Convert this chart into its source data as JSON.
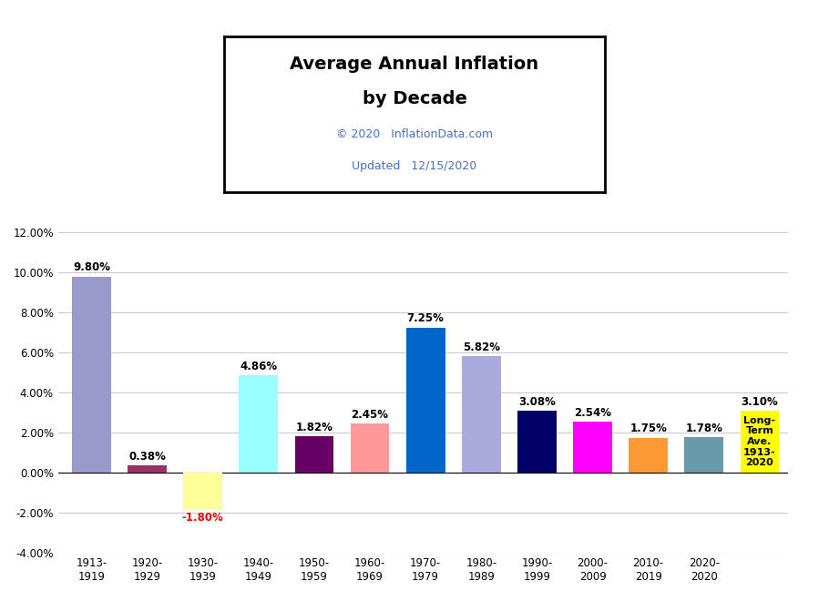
{
  "categories": [
    "1913-\n1919",
    "1920-\n1929",
    "1930-\n1939",
    "1940-\n1949",
    "1950-\n1959",
    "1960-\n1969",
    "1970-\n1979",
    "1980-\n1989",
    "1990-\n1999",
    "2000-\n2009",
    "2010-\n2019",
    "2020-\n2020"
  ],
  "values": [
    9.8,
    0.38,
    -1.8,
    4.86,
    1.82,
    2.45,
    7.25,
    5.82,
    3.08,
    2.54,
    1.75,
    1.78
  ],
  "long_term_value": 3.1,
  "bar_colors": [
    "#9999cc",
    "#993366",
    "#ffff99",
    "#99ffff",
    "#660066",
    "#ff9999",
    "#0066cc",
    "#aaaadd",
    "#000066",
    "#ff00ff",
    "#ff9933",
    "#6699aa"
  ],
  "long_term_color": "#ffff00",
  "title_line1": "Average Annual Inflation",
  "title_line2": "by Decade",
  "subtitle1": "© 2020   InflationData.com",
  "subtitle2": "Updated   12/15/2020",
  "ylim": [
    -4.0,
    12.5
  ],
  "yticks": [
    -4.0,
    -2.0,
    0.0,
    2.0,
    4.0,
    6.0,
    8.0,
    10.0,
    12.0
  ],
  "background_color": "#ffffff",
  "grid_color": "#cccccc"
}
